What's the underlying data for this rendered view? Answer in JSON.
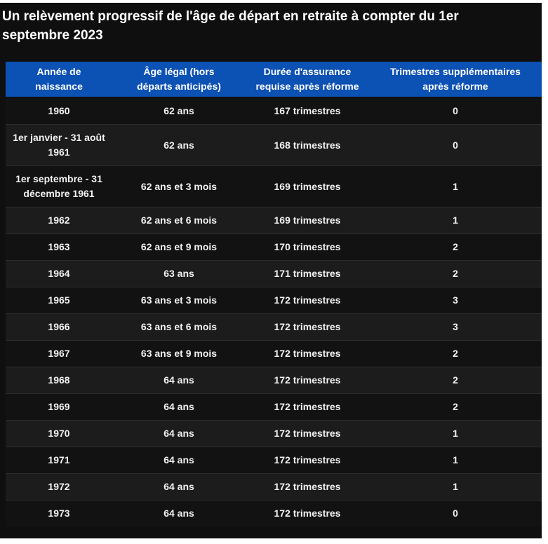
{
  "title": "Un relèvement progressif de l'âge de départ en retraite à compter du 1er septembre 2023",
  "chart_data": {
    "type": "table",
    "columns": [
      "Année de\nnaissance",
      "Âge légal (hors\ndéparts anticipés)",
      "Durée d'assurance\nrequise après réforme",
      "Trimestres supplémentaires\naprès réforme"
    ],
    "rows": [
      [
        "1960",
        "62 ans",
        "167 trimestres",
        "0"
      ],
      [
        "1er janvier - 31 août\n1961",
        "62 ans",
        "168 trimestres",
        "0"
      ],
      [
        "1er septembre - 31\ndécembre 1961",
        "62 ans et 3 mois",
        "169 trimestres",
        "1"
      ],
      [
        "1962",
        "62 ans et 6 mois",
        "169 trimestres",
        "1"
      ],
      [
        "1963",
        "62 ans et 9 mois",
        "170 trimestres",
        "2"
      ],
      [
        "1964",
        "63 ans",
        "171 trimestres",
        "2"
      ],
      [
        "1965",
        "63 ans et 3 mois",
        "172 trimestres",
        "3"
      ],
      [
        "1966",
        "63 ans et 6 mois",
        "172 trimestres",
        "3"
      ],
      [
        "1967",
        "63 ans et 9 mois",
        "172 trimestres",
        "2"
      ],
      [
        "1968",
        "64 ans",
        "172 trimestres",
        "2"
      ],
      [
        "1969",
        "64 ans",
        "172 trimestres",
        "2"
      ],
      [
        "1970",
        "64 ans",
        "172 trimestres",
        "1"
      ],
      [
        "1971",
        "64 ans",
        "172 trimestres",
        "1"
      ],
      [
        "1972",
        "64 ans",
        "172 trimestres",
        "1"
      ],
      [
        "1973",
        "64 ans",
        "172 trimestres",
        "0"
      ]
    ]
  },
  "colors": {
    "header_bg": "#0c51b4",
    "panel_bg": "#0f0f0f",
    "row_dark": "#121212",
    "row_light": "#1c1c1c",
    "text": "#ffffff",
    "page_bg": "#ffffff"
  }
}
